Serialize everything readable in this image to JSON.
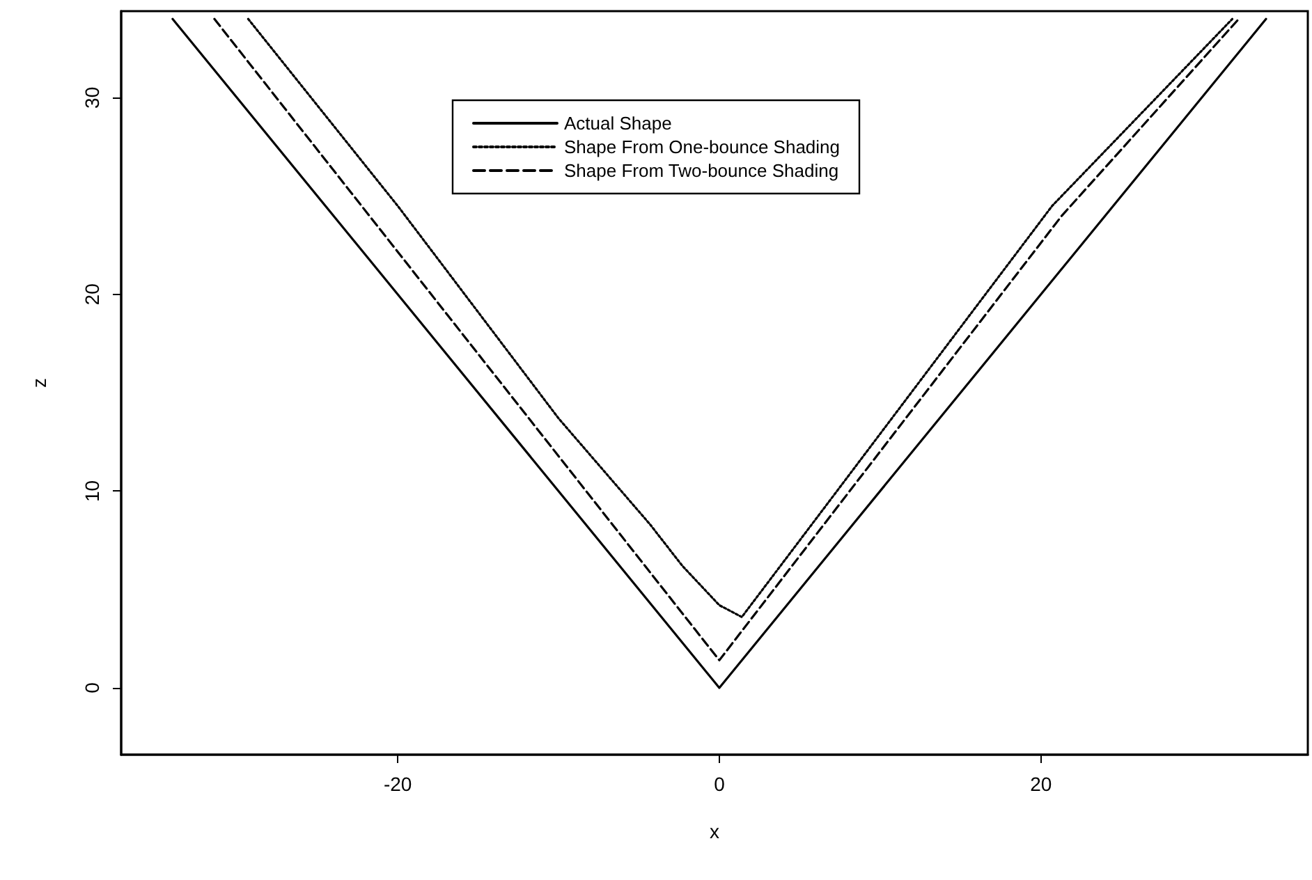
{
  "chart_data": {
    "type": "line",
    "xlabel": "x",
    "ylabel": "z",
    "xlim": [
      -37.2,
      36.6
    ],
    "ylim": [
      -3.4,
      34.4
    ],
    "xticks": [
      -20,
      0,
      20
    ],
    "yticks": [
      0,
      10,
      20,
      30
    ],
    "grid": false,
    "legend": "top",
    "marker": "none",
    "series": [
      {
        "name": "Actual Shape",
        "color": "#000000",
        "line_style": "solid",
        "x": [
          -34,
          0,
          34
        ],
        "values": [
          34,
          0,
          34
        ]
      },
      {
        "name": "Shape From One-bounce Shading",
        "color": "#000000",
        "line_style": "dotted",
        "x": [
          -29.3,
          -20,
          -10,
          -4.3,
          -2.3,
          0,
          1.4,
          6.3,
          20.7,
          31.9
        ],
        "values": [
          34,
          24.5,
          13.7,
          8.3,
          6.2,
          4.2,
          3.6,
          8.9,
          24.5,
          34
        ]
      },
      {
        "name": "Shape From Two-bounce Shading",
        "color": "#000000",
        "line_style": "dashed",
        "x": [
          -31.4,
          0,
          21.3,
          32.3
        ],
        "values": [
          34,
          1.4,
          24,
          34
        ]
      }
    ]
  }
}
